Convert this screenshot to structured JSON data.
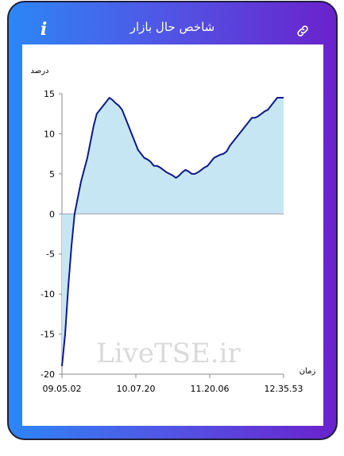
{
  "header": {
    "title": "شاخص حال بازار",
    "info_icon": "info-icon",
    "link_icon": "link-icon"
  },
  "watermark": "LiveTSE.ir",
  "chart_data": {
    "type": "area",
    "ylabel": "درصد",
    "xlabel": "زمان",
    "ylim": [
      -20,
      15
    ],
    "yticks": [
      15,
      10,
      5,
      0,
      -5,
      -10,
      -15,
      -20
    ],
    "xticks": [
      "09.05.02",
      "10.07.20",
      "11.20.06",
      "12.35.53"
    ],
    "grid": false,
    "colors": {
      "line": "#0c1a8c",
      "fill": "#c7e6f3",
      "zero_line": "#9aa0a6"
    },
    "series": [
      {
        "values": [
          -19,
          -15,
          -9,
          -4,
          0,
          2,
          4,
          5.5,
          7,
          9,
          11,
          12.5,
          13,
          13.5,
          14,
          14.5,
          14.2,
          13.8,
          13.5,
          13,
          12,
          11,
          10,
          9,
          8,
          7.5,
          7,
          6.8,
          6.5,
          6,
          6,
          5.8,
          5.5,
          5.2,
          5,
          4.8,
          4.5,
          4.8,
          5.2,
          5.5,
          5.3,
          5,
          5,
          5.2,
          5.5,
          5.8,
          6,
          6.5,
          7,
          7.2,
          7.4,
          7.5,
          7.8,
          8.5,
          9,
          9.5,
          10,
          10.5,
          11,
          11.5,
          12,
          12,
          12.2,
          12.5,
          12.8,
          13,
          13.5,
          14,
          14.5,
          14.5,
          14.5
        ]
      }
    ]
  }
}
